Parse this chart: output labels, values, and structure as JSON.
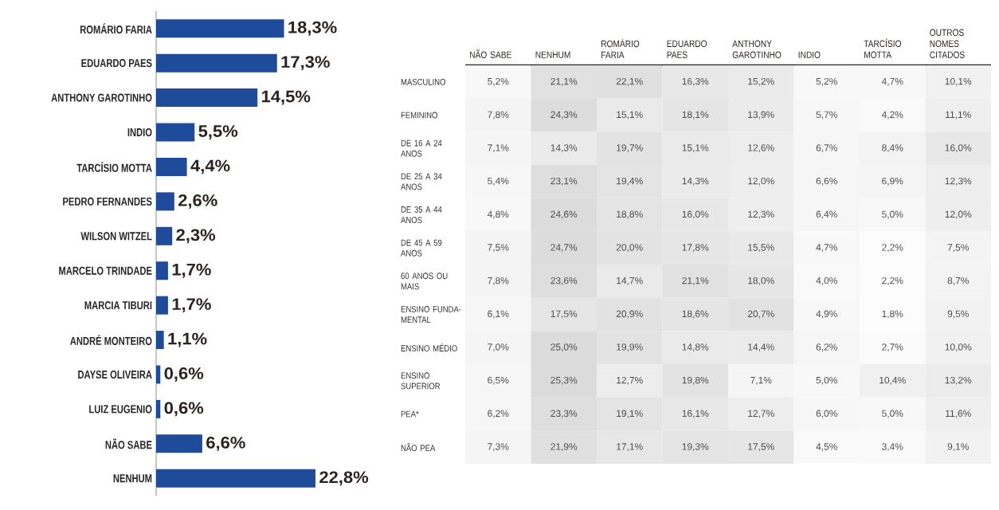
{
  "chart_data": [
    {
      "type": "bar",
      "orientation": "horizontal",
      "color": "#1f4c9a",
      "categories": [
        "ROMÁRIO FARIA",
        "EDUARDO PAES",
        "ANTHONY GAROTINHO",
        "INDIO",
        "TARCÍSIO MOTTA",
        "PEDRO FERNANDES",
        "WILSON WITZEL",
        "MARCELO TRINDADE",
        "MARCIA TIBURI",
        "ANDRÉ MONTEIRO",
        "DAYSE OLIVEIRA",
        "LUIZ EUGENIO",
        "NÃO SABE",
        "NENHUM"
      ],
      "values": [
        18.3,
        17.3,
        14.5,
        5.5,
        4.4,
        2.6,
        2.3,
        1.7,
        1.7,
        1.1,
        0.6,
        0.6,
        6.6,
        22.8
      ],
      "value_labels": [
        "18,3%",
        "17,3%",
        "14,5%",
        "5,5%",
        "4,4%",
        "2,6%",
        "2,3%",
        "1,7%",
        "1,7%",
        "1,1%",
        "0,6%",
        "0,6%",
        "6,6%",
        "22,8%"
      ]
    },
    {
      "type": "heatmap",
      "categories": [
        "NÃO SABE",
        "NENHUM",
        "ROMÁRIO FARIA",
        "EDUARDO PAES",
        "ANTHONY GAROTINHO",
        "INDIO",
        "TARCÍSIO MOTTA",
        "OUTROS NOMES CITADOS"
      ],
      "y_categories": [
        "MASCULINO",
        "FEMININO",
        "DE 16 A 24 ANOS",
        "DE 25 A 34 ANOS",
        "DE 35 A 44 ANOS",
        "DE 45 A 59 ANOS",
        "60 ANOS OU MAIS",
        "ENSINO FUNDA-MENTAL",
        "ENSINO MÉDIO",
        "ENSINO SUPERIOR",
        "PEA*",
        "NÃO PEA"
      ],
      "cells": [
        [
          5.2,
          21.1,
          22.1,
          16.3,
          15.2,
          5.2,
          4.7,
          10.1
        ],
        [
          7.8,
          24.3,
          15.1,
          18.1,
          13.9,
          5.7,
          4.2,
          11.1
        ],
        [
          7.1,
          14.3,
          19.7,
          15.1,
          12.6,
          6.7,
          8.4,
          16.0
        ],
        [
          5.4,
          23.1,
          19.4,
          14.3,
          12.0,
          6.6,
          6.9,
          12.3
        ],
        [
          4.8,
          24.6,
          18.8,
          16.0,
          12.3,
          6.4,
          5.0,
          12.0
        ],
        [
          7.5,
          24.7,
          20.0,
          17.8,
          15.5,
          4.7,
          2.2,
          7.5
        ],
        [
          7.8,
          23.6,
          14.7,
          21.1,
          18.0,
          4.0,
          2.2,
          8.7
        ],
        [
          6.1,
          17.5,
          20.9,
          18.6,
          20.7,
          4.9,
          1.8,
          9.5
        ],
        [
          7.0,
          25.0,
          19.9,
          14.8,
          14.4,
          6.2,
          2.7,
          10.0
        ],
        [
          6.5,
          25.3,
          12.7,
          19.8,
          7.1,
          5.0,
          10.4,
          13.2
        ],
        [
          6.2,
          23.3,
          19.1,
          16.1,
          12.7,
          6.0,
          5.0,
          11.6
        ],
        [
          7.3,
          21.9,
          17.1,
          19.3,
          17.5,
          4.5,
          3.4,
          9.1
        ]
      ],
      "cell_labels": [
        [
          "5,2%",
          "21,1%",
          "22,1%",
          "16,3%",
          "15,2%",
          "5,2%",
          "4,7%",
          "10,1%"
        ],
        [
          "7,8%",
          "24,3%",
          "15,1%",
          "18,1%",
          "13,9%",
          "5,7%",
          "4,2%",
          "11,1%"
        ],
        [
          "7,1%",
          "14,3%",
          "19,7%",
          "15,1%",
          "12,6%",
          "6,7%",
          "8,4%",
          "16,0%"
        ],
        [
          "5,4%",
          "23,1%",
          "19,4%",
          "14,3%",
          "12,0%",
          "6,6%",
          "6,9%",
          "12,3%"
        ],
        [
          "4,8%",
          "24,6%",
          "18,8%",
          "16,0%",
          "12,3%",
          "6,4%",
          "5,0%",
          "12,0%"
        ],
        [
          "7,5%",
          "24,7%",
          "20,0%",
          "17,8%",
          "15,5%",
          "4,7%",
          "2,2%",
          "7,5%"
        ],
        [
          "7,8%",
          "23,6%",
          "14,7%",
          "21,1%",
          "18,0%",
          "4,0%",
          "2,2%",
          "8,7%"
        ],
        [
          "6,1%",
          "17,5%",
          "20,9%",
          "18,6%",
          "20,7%",
          "4,9%",
          "1,8%",
          "9,5%"
        ],
        [
          "7,0%",
          "25,0%",
          "19,9%",
          "14,8%",
          "14,4%",
          "6,2%",
          "2,7%",
          "10,0%"
        ],
        [
          "6,5%",
          "25,3%",
          "12,7%",
          "19,8%",
          "7,1%",
          "5,0%",
          "10,4%",
          "13,2%"
        ],
        [
          "6,2%",
          "23,3%",
          "19,1%",
          "16,1%",
          "12,7%",
          "6,0%",
          "5,0%",
          "11,6%"
        ],
        [
          "7,3%",
          "21,9%",
          "17,1%",
          "19,3%",
          "17,5%",
          "4,5%",
          "3,4%",
          "9,1%"
        ]
      ]
    }
  ]
}
